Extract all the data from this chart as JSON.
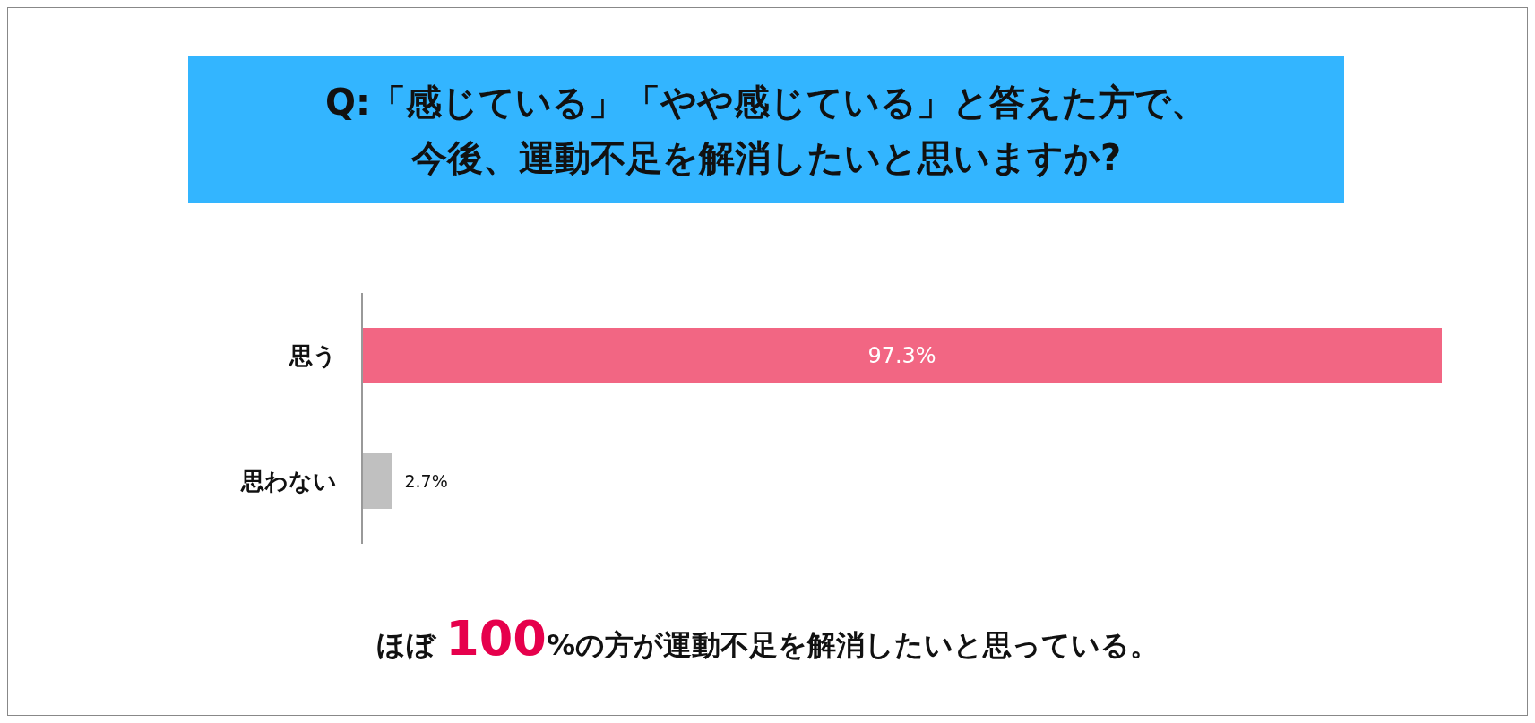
{
  "chart_data": {
    "type": "bar",
    "orientation": "horizontal",
    "title": "Q:「感じている」「やや感じている」と答えた方で、今後、運動不足を解消したいと思いますか?",
    "categories": [
      "思う",
      "思わない"
    ],
    "values": [
      97.3,
      2.7
    ],
    "colors": [
      "#f26683",
      "#c0c0c0"
    ],
    "value_labels": [
      "97.3%",
      "2.7%"
    ],
    "grid": false,
    "legend": false,
    "tick_labels": "y",
    "annotations": [
      "ほぼ 100%の方が運動不足を解消したいと思っている。"
    ]
  }
}
